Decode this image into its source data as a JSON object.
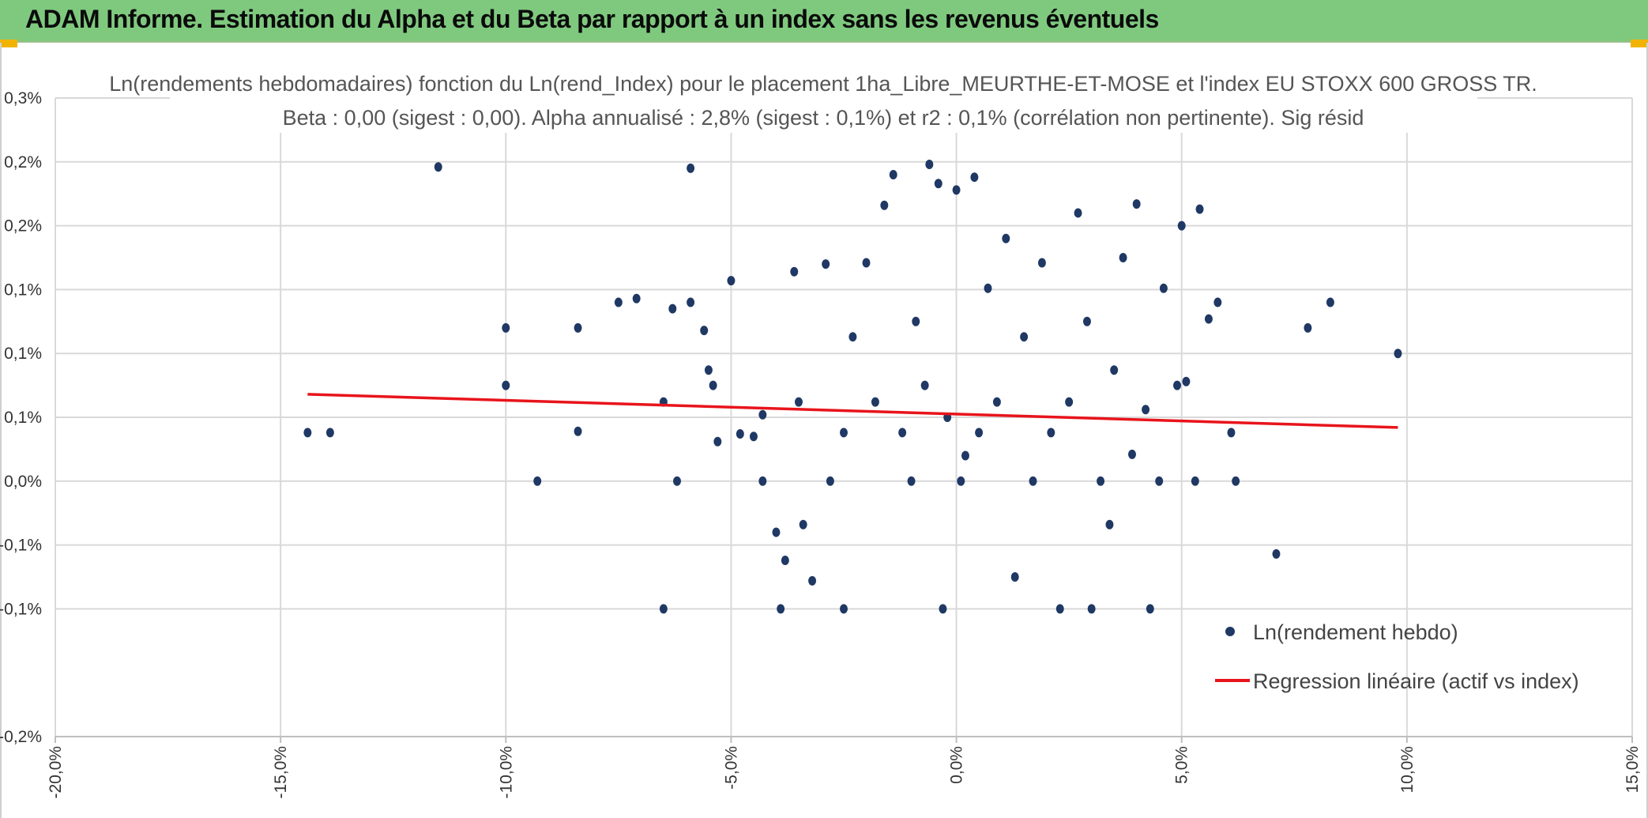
{
  "header": {
    "title": "ADAM Informe. Estimation du Alpha et du Beta par rapport à un index sans les revenus éventuels",
    "background": "#7fc97f",
    "corner_color": "#f0b400"
  },
  "chart_data": {
    "type": "scatter",
    "title_line1": "Ln(rendements hebdomadaires) fonction du Ln(rend_Index) pour le placement 1ha_Libre_MEURTHE-ET-MOSE et l'index EU STOXX 600 GROSS TR.",
    "title_line2": "Beta : 0,00 (sigest : 0,00). Alpha annualisé : 2,8% (sigest : 0,1%) et r2 : 0,1% (corrélation non pertinente). Sig résid",
    "xlabel": "",
    "ylabel": "",
    "xlim": [
      -20,
      15
    ],
    "ylim": [
      -0.2,
      0.3
    ],
    "x_ticks": [
      -20,
      -15,
      -10,
      -5,
      0,
      5,
      10,
      15
    ],
    "x_tick_labels": [
      "-20,0%",
      "-15,0%",
      "-10,0%",
      "-5,0%",
      "0,0%",
      "5,0%",
      "10,0%",
      "15,0%"
    ],
    "y_ticks": [
      -0.2,
      -0.1,
      -0.05,
      0.0,
      0.05,
      0.1,
      0.15,
      0.2,
      0.25,
      0.3
    ],
    "y_tick_labels": [
      "-0,2%",
      "-0,1%",
      "-0,1%",
      "0,0%",
      "0,1%",
      "0,1%",
      "0,1%",
      "0,2%",
      "0,2%",
      "0,3%"
    ],
    "grid": true,
    "legend_position": "bottom-right",
    "series": [
      {
        "name": "Ln(rendement hebdo)",
        "type": "scatter",
        "color": "#1f3864",
        "points": [
          [
            -14.4,
            0.038
          ],
          [
            -13.9,
            0.038
          ],
          [
            -11.5,
            0.246
          ],
          [
            -10.0,
            0.12
          ],
          [
            -10.0,
            0.075
          ],
          [
            -9.3,
            0.0
          ],
          [
            -8.4,
            0.12
          ],
          [
            -8.4,
            0.039
          ],
          [
            -7.5,
            0.14
          ],
          [
            -7.1,
            0.143
          ],
          [
            -6.5,
            0.062
          ],
          [
            -6.5,
            -0.1
          ],
          [
            -6.2,
            0.0
          ],
          [
            -6.3,
            0.135
          ],
          [
            -5.9,
            0.245
          ],
          [
            -5.9,
            0.14
          ],
          [
            -5.6,
            0.118
          ],
          [
            -5.5,
            0.087
          ],
          [
            -5.4,
            0.075
          ],
          [
            -5.3,
            0.031
          ],
          [
            -5.0,
            0.157
          ],
          [
            -4.8,
            0.037
          ],
          [
            -4.5,
            0.035
          ],
          [
            -4.3,
            0.052
          ],
          [
            -4.3,
            0.0
          ],
          [
            -4.0,
            -0.04
          ],
          [
            -3.9,
            -0.1
          ],
          [
            -3.8,
            -0.062
          ],
          [
            -3.6,
            0.164
          ],
          [
            -3.5,
            0.062
          ],
          [
            -3.4,
            -0.034
          ],
          [
            -3.2,
            -0.078
          ],
          [
            -2.9,
            0.17
          ],
          [
            -2.8,
            0.0
          ],
          [
            -2.5,
            0.038
          ],
          [
            -2.5,
            -0.1
          ],
          [
            -2.3,
            0.113
          ],
          [
            -2.0,
            0.171
          ],
          [
            -1.8,
            0.062
          ],
          [
            -1.6,
            0.216
          ],
          [
            -1.4,
            0.24
          ],
          [
            -1.2,
            0.038
          ],
          [
            -1.0,
            0.0
          ],
          [
            -0.9,
            0.125
          ],
          [
            -0.7,
            0.075
          ],
          [
            -0.6,
            0.248
          ],
          [
            -0.4,
            0.233
          ],
          [
            -0.3,
            -0.1
          ],
          [
            -0.2,
            0.05
          ],
          [
            0.0,
            0.228
          ],
          [
            0.1,
            0.0
          ],
          [
            0.2,
            0.02
          ],
          [
            0.4,
            0.238
          ],
          [
            0.5,
            0.038
          ],
          [
            0.7,
            0.151
          ],
          [
            0.9,
            0.062
          ],
          [
            1.1,
            0.19
          ],
          [
            1.3,
            -0.075
          ],
          [
            1.5,
            0.113
          ],
          [
            1.7,
            0.0
          ],
          [
            1.9,
            0.171
          ],
          [
            2.1,
            0.038
          ],
          [
            2.3,
            -0.1
          ],
          [
            2.5,
            0.062
          ],
          [
            2.7,
            0.21
          ],
          [
            2.9,
            0.125
          ],
          [
            3.0,
            -0.1
          ],
          [
            3.2,
            0.0
          ],
          [
            3.4,
            -0.034
          ],
          [
            3.5,
            0.087
          ],
          [
            3.7,
            0.175
          ],
          [
            3.9,
            0.021
          ],
          [
            4.0,
            0.217
          ],
          [
            4.2,
            0.056
          ],
          [
            4.3,
            -0.1
          ],
          [
            4.5,
            0.0
          ],
          [
            4.6,
            0.151
          ],
          [
            4.9,
            0.075
          ],
          [
            5.0,
            0.2
          ],
          [
            5.1,
            0.078
          ],
          [
            5.3,
            0.0
          ],
          [
            5.4,
            0.213
          ],
          [
            5.6,
            0.127
          ],
          [
            5.8,
            0.14
          ],
          [
            6.1,
            0.038
          ],
          [
            6.2,
            0.0
          ],
          [
            7.1,
            -0.057
          ],
          [
            7.8,
            0.12
          ],
          [
            8.3,
            0.14
          ],
          [
            9.8,
            0.1
          ]
        ]
      },
      {
        "name": "Regression linéaire (actif vs index)",
        "type": "line",
        "color": "#e8141b",
        "points": [
          [
            -14.4,
            0.068
          ],
          [
            9.8,
            0.042
          ]
        ]
      }
    ]
  }
}
